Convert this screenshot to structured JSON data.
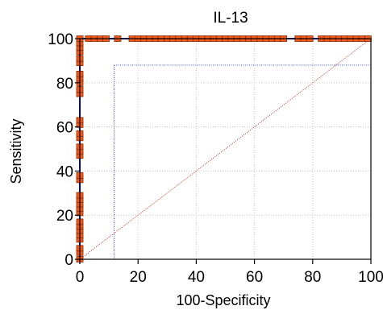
{
  "chart_data": {
    "type": "line",
    "title": "IL-13",
    "xlabel": "100-Specificity",
    "ylabel": "Sensitivity",
    "xlim": [
      0,
      100
    ],
    "ylim": [
      0,
      100
    ],
    "x_ticks": [
      0,
      20,
      40,
      60,
      80,
      100
    ],
    "y_ticks": [
      0,
      20,
      40,
      60,
      80,
      100
    ],
    "grid": true,
    "colors": {
      "roc_line": "#1f2bd1",
      "marker_fill": "#f05a1e",
      "marker_edge": "#8b2a00",
      "reference_line": "#c0392b",
      "criterion_lines": "#3344cc",
      "grid": "#c8c8c8"
    },
    "series": [
      {
        "points": [
          [
            0,
            0
          ],
          [
            0,
            3
          ],
          [
            0,
            5
          ],
          [
            0,
            9
          ],
          [
            0,
            11
          ],
          [
            0,
            13
          ],
          [
            0,
            15
          ],
          [
            0,
            17
          ],
          [
            0,
            21
          ],
          [
            0,
            23
          ],
          [
            0,
            25
          ],
          [
            0,
            27
          ],
          [
            0,
            29
          ],
          [
            0,
            36
          ],
          [
            0,
            38
          ],
          [
            0,
            47
          ],
          [
            0,
            49
          ],
          [
            0,
            51
          ],
          [
            0,
            55
          ],
          [
            0,
            57
          ],
          [
            0,
            61
          ],
          [
            0,
            63
          ],
          [
            0,
            75
          ],
          [
            0,
            77
          ],
          [
            0,
            80
          ],
          [
            0,
            82
          ],
          [
            0,
            84
          ],
          [
            0,
            89
          ],
          [
            0,
            91
          ],
          [
            0,
            94
          ],
          [
            0,
            96
          ],
          [
            0,
            98
          ],
          [
            0,
            100
          ],
          [
            3,
            100
          ],
          [
            5,
            100
          ],
          [
            7,
            100
          ],
          [
            9,
            100
          ],
          [
            13,
            100
          ],
          [
            18,
            100
          ],
          [
            20,
            100
          ],
          [
            22,
            100
          ],
          [
            24,
            100
          ],
          [
            26,
            100
          ],
          [
            28,
            100
          ],
          [
            30,
            100
          ],
          [
            32,
            100
          ],
          [
            34,
            100
          ],
          [
            36,
            100
          ],
          [
            38,
            100
          ],
          [
            40,
            100
          ],
          [
            42,
            100
          ],
          [
            44,
            100
          ],
          [
            46,
            100
          ],
          [
            48,
            100
          ],
          [
            50,
            100
          ],
          [
            52,
            100
          ],
          [
            54,
            100
          ],
          [
            56,
            100
          ],
          [
            58,
            100
          ],
          [
            60,
            100
          ],
          [
            62,
            100
          ],
          [
            64,
            100
          ],
          [
            66,
            100
          ],
          [
            68,
            100
          ],
          [
            70,
            100
          ],
          [
            75,
            100
          ],
          [
            77,
            100
          ],
          [
            79,
            100
          ],
          [
            83,
            100
          ],
          [
            85,
            100
          ],
          [
            87,
            100
          ],
          [
            89,
            100
          ],
          [
            91,
            100
          ],
          [
            93,
            100
          ],
          [
            95,
            100
          ],
          [
            97,
            100
          ],
          [
            99,
            100
          ]
        ]
      },
      {
        "points": [
          [
            0,
            0
          ],
          [
            100,
            100
          ]
        ]
      }
    ],
    "criterion_point": {
      "x": 11.8,
      "y": 88
    }
  }
}
